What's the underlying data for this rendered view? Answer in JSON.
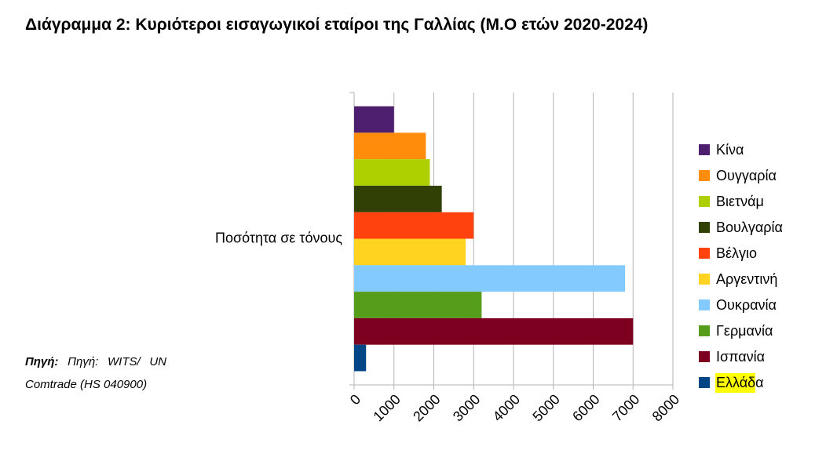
{
  "chart_data": {
    "type": "bar",
    "orientation": "horizontal",
    "title": "Διάγραμμα 2: Κυριότεροι εισαγωγικοί εταίροι της Γαλλίας (Μ.Ο ετών 2020-2024)",
    "categories": [
      "Ποσότητα σε τόνους"
    ],
    "series": [
      {
        "name": "Κίνα",
        "color": "#4e1f6e",
        "values": [
          1000
        ]
      },
      {
        "name": "Ουγγαρία",
        "color": "#ff8c0a",
        "values": [
          1800
        ]
      },
      {
        "name": "Βιετνάμ",
        "color": "#aecf00",
        "values": [
          1900
        ]
      },
      {
        "name": "Βουλγαρία",
        "color": "#314004",
        "values": [
          2200
        ]
      },
      {
        "name": "Βέλγιο",
        "color": "#ff420e",
        "values": [
          3000
        ]
      },
      {
        "name": "Αργεντινή",
        "color": "#ffd320",
        "values": [
          2800
        ]
      },
      {
        "name": "Ουκρανία",
        "color": "#83caff",
        "values": [
          6800
        ]
      },
      {
        "name": "Γερμανία",
        "color": "#579d1c",
        "values": [
          3200
        ]
      },
      {
        "name": "Ισπανία",
        "color": "#7e0021",
        "values": [
          7000
        ]
      },
      {
        "name": "Ελλάδα",
        "color": "#004586",
        "values": [
          300
        ]
      }
    ],
    "xlim": [
      0,
      8000
    ],
    "xticks": [
      0,
      1000,
      2000,
      3000,
      4000,
      5000,
      6000,
      7000,
      8000
    ],
    "grid": true,
    "legend": "right"
  },
  "source": {
    "label": "Πηγή:",
    "text": "Πηγή: WITS/ UN Comtrade (HS 040900)"
  }
}
